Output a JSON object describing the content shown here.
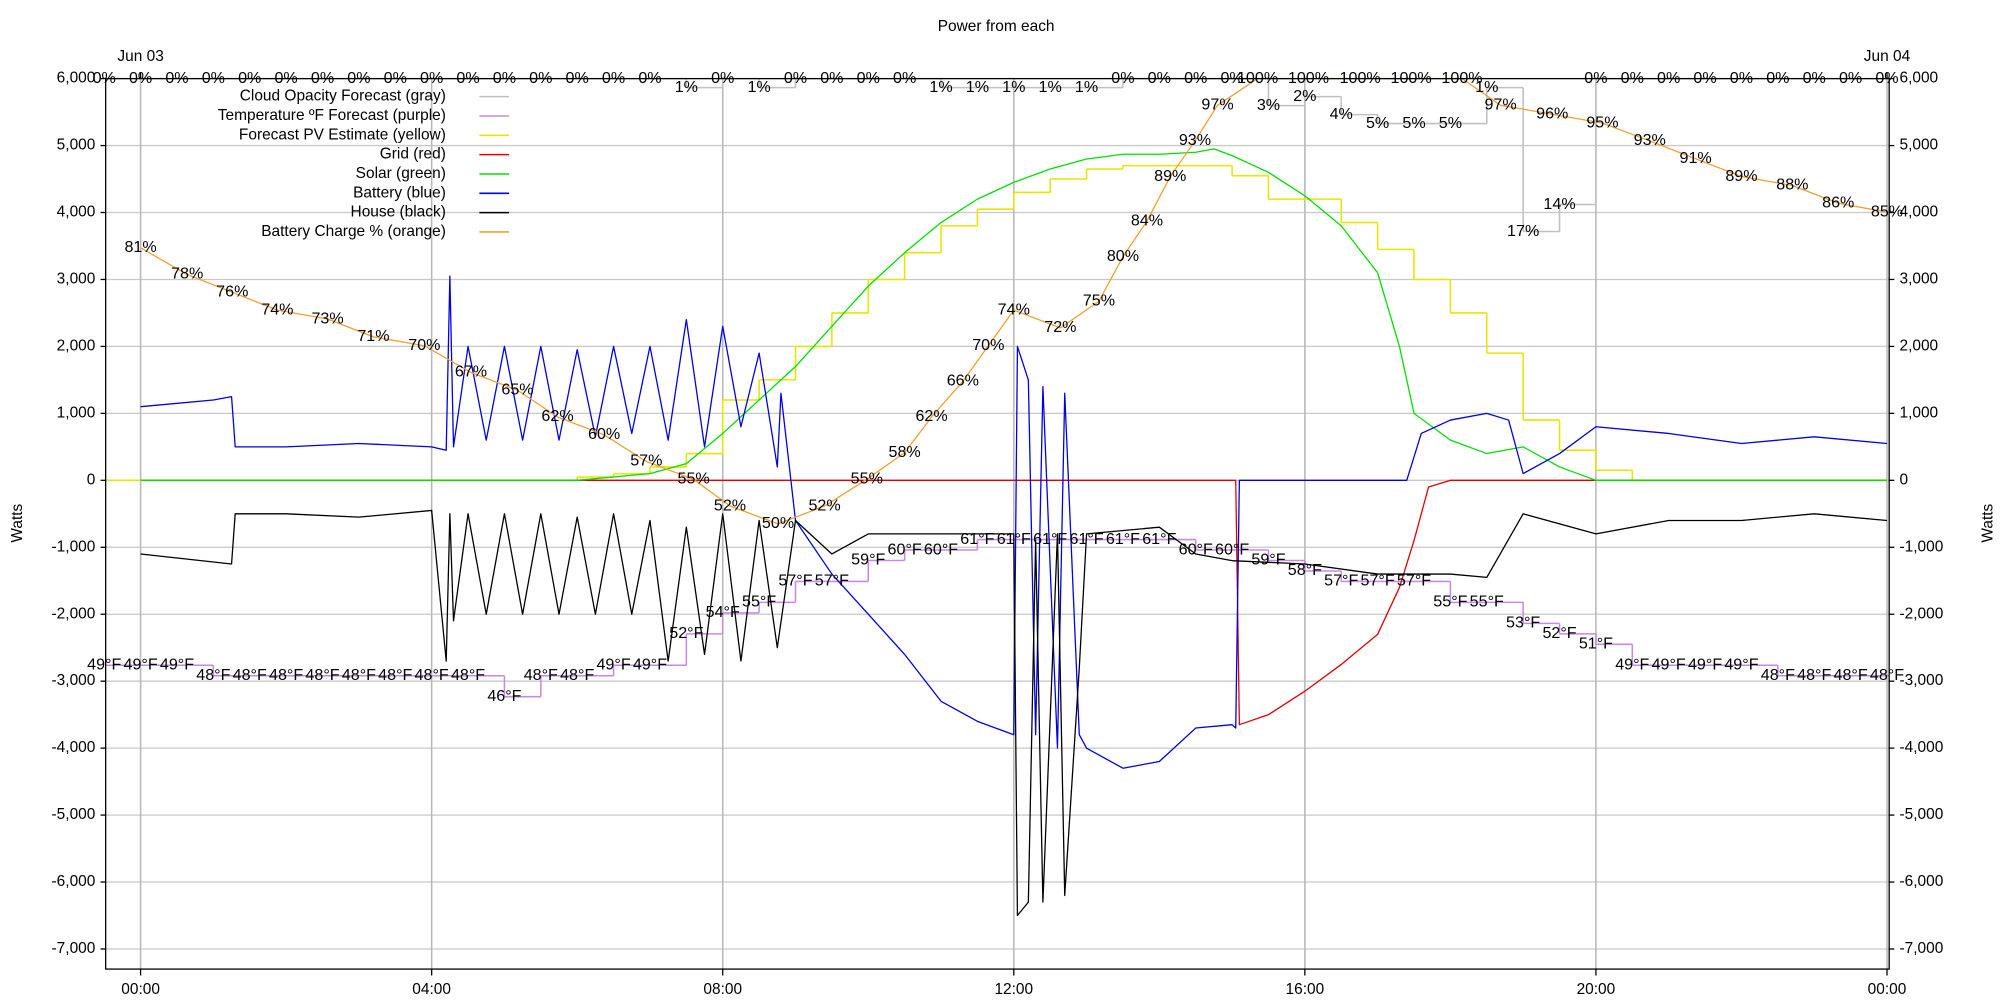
{
  "chart_data": {
    "type": "line",
    "title": "Power from each",
    "y_label": "Watts",
    "xlim": [
      -0.48,
      24.03
    ],
    "ylim": [
      -7300,
      6000
    ],
    "grid": true,
    "legend": "top-left",
    "xticks": [
      {
        "value": 0,
        "label": "00:00"
      },
      {
        "value": 4,
        "label": "04:00"
      },
      {
        "value": 8,
        "label": "08:00"
      },
      {
        "value": 12,
        "label": "12:00"
      },
      {
        "value": 16,
        "label": "16:00"
      },
      {
        "value": 20,
        "label": "20:00"
      },
      {
        "value": 24,
        "label": "00:00"
      }
    ],
    "x_dates": [
      {
        "value": 0,
        "label": "Jun 03"
      },
      {
        "value": 24,
        "label": "Jun 04"
      }
    ],
    "yticks": [
      {
        "value": 6000,
        "label": "6,000"
      },
      {
        "value": 5000,
        "label": "5,000"
      },
      {
        "value": 4000,
        "label": "4,000"
      },
      {
        "value": 3000,
        "label": "3,000"
      },
      {
        "value": 2000,
        "label": "2,000"
      },
      {
        "value": 1000,
        "label": "1,000"
      },
      0,
      {
        "value": -1000,
        "label": "-1,000"
      },
      {
        "value": -2000,
        "label": "-2,000"
      },
      {
        "value": -3000,
        "label": "-3,000"
      },
      {
        "value": -4000,
        "label": "-4,000"
      },
      {
        "value": -5000,
        "label": "-5,000"
      },
      {
        "value": -6000,
        "label": "-6,000"
      },
      {
        "value": -7000,
        "label": "-7,000"
      }
    ],
    "series": [
      {
        "name": "Cloud Opacity Forecast (gray)",
        "color": "#c0c0c0",
        "label_color": "#b4b4b4",
        "style": "step",
        "ylim": [
          99,
          0
        ],
        "x": [
          -0.5,
          0,
          0.5,
          1,
          1.5,
          2,
          2.5,
          3,
          3.5,
          4,
          4.5,
          5,
          5.5,
          6,
          6.5,
          7,
          7.5,
          8,
          8.5,
          9,
          9.5,
          10,
          10.5,
          11,
          11.5,
          12,
          12.5,
          13,
          13.5,
          14,
          14.5,
          15,
          15.5,
          16,
          16.5,
          17,
          17.5,
          18,
          18.5,
          19,
          19.5,
          20,
          20.5,
          21,
          21.5,
          22,
          22.5,
          23,
          23.5,
          24
        ],
        "values": [
          0,
          0,
          0,
          0,
          0,
          0,
          0,
          0,
          0,
          0,
          0,
          0,
          0,
          0,
          0,
          0,
          1,
          0,
          1,
          0,
          0,
          0,
          0,
          1,
          1,
          1,
          1,
          1,
          0,
          0,
          0,
          0,
          3,
          2,
          4,
          5,
          5,
          5,
          1,
          17,
          14,
          0,
          0,
          0,
          0,
          0,
          0,
          0,
          0,
          0
        ],
        "value_labels": [
          "0%",
          "0%",
          "0%",
          "0%",
          "0%",
          "0%",
          "0%",
          "0%",
          "0%",
          "0%",
          "0%",
          "0%",
          "0%",
          "0%",
          "0%",
          "0%",
          "1%",
          "0%",
          "1%",
          "0%",
          "0%",
          "0%",
          "0%",
          "1%",
          "1%",
          "1%",
          "1%",
          "1%",
          "0%",
          "0%",
          "0%",
          "0%",
          "3%",
          "2%",
          "4%",
          "5%",
          "5%",
          "5%",
          "1%",
          "17%",
          "14%",
          "0%",
          "0%",
          "0%",
          "0%",
          "0%",
          "0%",
          "0%",
          "0%",
          "0%"
        ]
      },
      {
        "name": "Temperature ºF Forecast (purple)",
        "color": "#c58ae8",
        "label_color": "#b77fe0",
        "style": "step",
        "ylim": [
          20,
          105
        ],
        "x": [
          -0.5,
          0,
          0.5,
          1,
          1.5,
          2,
          2.5,
          3,
          3.5,
          4,
          4.5,
          5,
          5.5,
          6,
          6.5,
          7,
          7.5,
          8,
          8.5,
          9,
          9.5,
          10,
          10.5,
          11,
          11.5,
          12,
          12.5,
          13,
          13.5,
          14,
          14.5,
          15,
          15.5,
          16,
          16.5,
          17,
          17.5,
          18,
          18.5,
          19,
          19.5,
          20,
          20.5,
          21,
          21.5,
          22,
          22.5,
          23,
          23.5,
          24
        ],
        "values": [
          49,
          49,
          49,
          48,
          48,
          48,
          48,
          48,
          48,
          48,
          48,
          46,
          48,
          48,
          49,
          49,
          52,
          54,
          55,
          57,
          57,
          59,
          60,
          60,
          61,
          61,
          61,
          61,
          61,
          61,
          60,
          60,
          59,
          58,
          57,
          57,
          57,
          55,
          55,
          53,
          52,
          51,
          49,
          49,
          49,
          49,
          48,
          48,
          48,
          48
        ],
        "value_labels": [
          "49°F",
          "49°F",
          "49°F",
          "48°F",
          "48°F",
          "48°F",
          "48°F",
          "48°F",
          "48°F",
          "48°F",
          "48°F",
          "46°F",
          "48°F",
          "48°F",
          "49°F",
          "49°F",
          "52°F",
          "54°F",
          "55°F",
          "57°F",
          "57°F",
          "59°F",
          "60°F",
          "60°F",
          "61°F",
          "61°F",
          "61°F",
          "61°F",
          "61°F",
          "61°F",
          "60°F",
          "60°F",
          "59°F",
          "58°F",
          "57°F",
          "57°F",
          "57°F",
          "55°F",
          "55°F",
          "53°F",
          "52°F",
          "51°F",
          "49°F",
          "49°F",
          "49°F",
          "49°F",
          "48°F",
          "48°F",
          "48°F",
          "48°F"
        ]
      },
      {
        "name": "Forecast PV Estimate (yellow)",
        "color": "#e6e600",
        "style": "step",
        "x": [
          -0.48,
          6,
          6.5,
          7,
          7.5,
          8,
          8.5,
          9,
          9.5,
          10,
          10.5,
          11,
          11.5,
          12,
          12.5,
          13,
          13.5,
          15,
          15.5,
          16.5,
          17,
          17.5,
          18,
          18.5,
          19,
          19.5,
          20,
          20.5
        ],
        "values": [
          0,
          50,
          100,
          200,
          400,
          1200,
          1500,
          2000,
          2500,
          3000,
          3400,
          3800,
          4050,
          4300,
          4500,
          4650,
          4700,
          4550,
          4200,
          3850,
          3450,
          3000,
          2500,
          1900,
          900,
          450,
          150,
          0
        ]
      },
      {
        "name": "Grid (red)",
        "color": "#e00000",
        "style": "line",
        "x": [
          0,
          15.05,
          15.1,
          15.5,
          16,
          16.5,
          17,
          17.3,
          17.5,
          17.7,
          18,
          24
        ],
        "values": [
          0,
          0,
          -3650,
          -3500,
          -3150,
          -2750,
          -2300,
          -1600,
          -900,
          -100,
          0,
          0
        ]
      },
      {
        "name": "Solar (green)",
        "color": "#00e000",
        "style": "line",
        "x": [
          0,
          6,
          7,
          7.5,
          8,
          8.5,
          9,
          9.5,
          10,
          10.5,
          11,
          11.5,
          12,
          12.5,
          13,
          13.5,
          14,
          14.5,
          14.75,
          15,
          15.5,
          16,
          16.5,
          17,
          17.3,
          17.5,
          18,
          18.5,
          19,
          19.5,
          20,
          24
        ],
        "values": [
          0,
          0,
          100,
          250,
          700,
          1200,
          1700,
          2300,
          2900,
          3400,
          3850,
          4200,
          4450,
          4650,
          4800,
          4870,
          4870,
          4900,
          4950,
          4850,
          4600,
          4250,
          3800,
          3100,
          2000,
          1000,
          600,
          400,
          500,
          200,
          0,
          0
        ]
      },
      {
        "name": "Battery (blue)",
        "color": "#0000e0",
        "style": "line",
        "x": [
          0,
          1,
          1.25,
          1.3,
          2,
          3,
          4,
          4.2,
          4.25,
          4.3,
          4.5,
          4.75,
          5,
          5.25,
          5.5,
          5.75,
          6,
          6.25,
          6.5,
          6.75,
          7,
          7.25,
          7.5,
          7.75,
          8,
          8.25,
          8.5,
          8.75,
          8.8,
          9,
          9.5,
          10,
          10.5,
          11,
          11.5,
          12,
          12.05,
          12.2,
          12.3,
          12.4,
          12.6,
          12.7,
          12.9,
          13,
          13.5,
          14,
          14.5,
          15,
          15.05,
          15.1,
          17.4,
          17.6,
          18,
          18.5,
          18.8,
          19,
          19.5,
          20,
          21,
          22,
          23,
          24
        ],
        "values": [
          1100,
          1200,
          1250,
          500,
          500,
          550,
          500,
          450,
          3050,
          500,
          2000,
          600,
          2000,
          600,
          2000,
          600,
          1950,
          650,
          2000,
          700,
          2000,
          600,
          2400,
          500,
          2300,
          800,
          1900,
          200,
          1300,
          -600,
          -1400,
          -2000,
          -2600,
          -3300,
          -3600,
          -3800,
          2000,
          1500,
          -3800,
          1400,
          -4000,
          1300,
          -3800,
          -4000,
          -4300,
          -4200,
          -3700,
          -3650,
          -3700,
          0,
          0,
          700,
          900,
          1000,
          900,
          100,
          400,
          800,
          700,
          550,
          650,
          550
        ]
      },
      {
        "name": "House (black)",
        "color": "#000000",
        "style": "line",
        "x": [
          0,
          1.25,
          1.3,
          2,
          3,
          4,
          4.2,
          4.25,
          4.3,
          4.5,
          4.75,
          5,
          5.25,
          5.5,
          5.75,
          6,
          6.25,
          6.5,
          6.75,
          7,
          7.25,
          7.5,
          7.75,
          8,
          8.25,
          8.5,
          8.75,
          9,
          9.5,
          10,
          11,
          12,
          12.05,
          12.2,
          12.3,
          12.4,
          12.6,
          12.7,
          12.9,
          13,
          14,
          14.5,
          15,
          16,
          17,
          18,
          18.5,
          19,
          20,
          21,
          22,
          23,
          24
        ],
        "values": [
          -1100,
          -1250,
          -500,
          -500,
          -550,
          -450,
          -2700,
          -500,
          -2100,
          -500,
          -2000,
          -500,
          -2000,
          -500,
          -2000,
          -550,
          -2000,
          -500,
          -2000,
          -600,
          -2700,
          -700,
          -2600,
          -500,
          -2700,
          -600,
          -2500,
          -600,
          -1100,
          -800,
          -800,
          -800,
          -6500,
          -6300,
          -900,
          -6300,
          -800,
          -6200,
          -2800,
          -800,
          -700,
          -1100,
          -1200,
          -1250,
          -1400,
          -1400,
          -1450,
          -500,
          -800,
          -600,
          -600,
          -500,
          -600
        ]
      },
      {
        "name": "Battery Charge % (orange)",
        "color": "#f0a030",
        "label_color": "#8b5214",
        "style": "line",
        "ylim": [
          0,
          100
        ],
        "x": [
          0,
          0.64,
          1.26,
          1.88,
          2.57,
          3.2,
          3.9,
          4.54,
          5.18,
          5.73,
          6.37,
          6.95,
          7.6,
          8.1,
          8.76,
          9.4,
          9.98,
          10.5,
          10.87,
          11.3,
          11.65,
          12,
          12.64,
          13.17,
          13.5,
          13.83,
          14.15,
          14.49,
          14.8,
          15.35,
          16.05,
          16.76,
          17.46,
          18.16,
          18.69,
          19.4,
          20.09,
          20.74,
          21.37,
          22,
          22.7,
          23.33,
          24
        ],
        "values": [
          81,
          78,
          76,
          74,
          73,
          71,
          70,
          67,
          65,
          62,
          60,
          57,
          55,
          52,
          50,
          52,
          55,
          58,
          62,
          66,
          70,
          74,
          72,
          75,
          80,
          84,
          89,
          93,
          97,
          100,
          100,
          100,
          100,
          100,
          97,
          96,
          95,
          93,
          91,
          89,
          88,
          86,
          85
        ],
        "value_labels": [
          "81%",
          "78%",
          "76%",
          "74%",
          "73%",
          "71%",
          "70%",
          "67%",
          "65%",
          "62%",
          "60%",
          "57%",
          "55%",
          "52%",
          "50%",
          "52%",
          "55%",
          "58%",
          "62%",
          "66%",
          "70%",
          "74%",
          "72%",
          "75%",
          "80%",
          "84%",
          "89%",
          "93%",
          "97%",
          "100%",
          "100%",
          "100%",
          "100%",
          "100%",
          "97%",
          "96%",
          "95%",
          "93%",
          "91%",
          "89%",
          "88%",
          "86%",
          "85%"
        ]
      }
    ]
  }
}
